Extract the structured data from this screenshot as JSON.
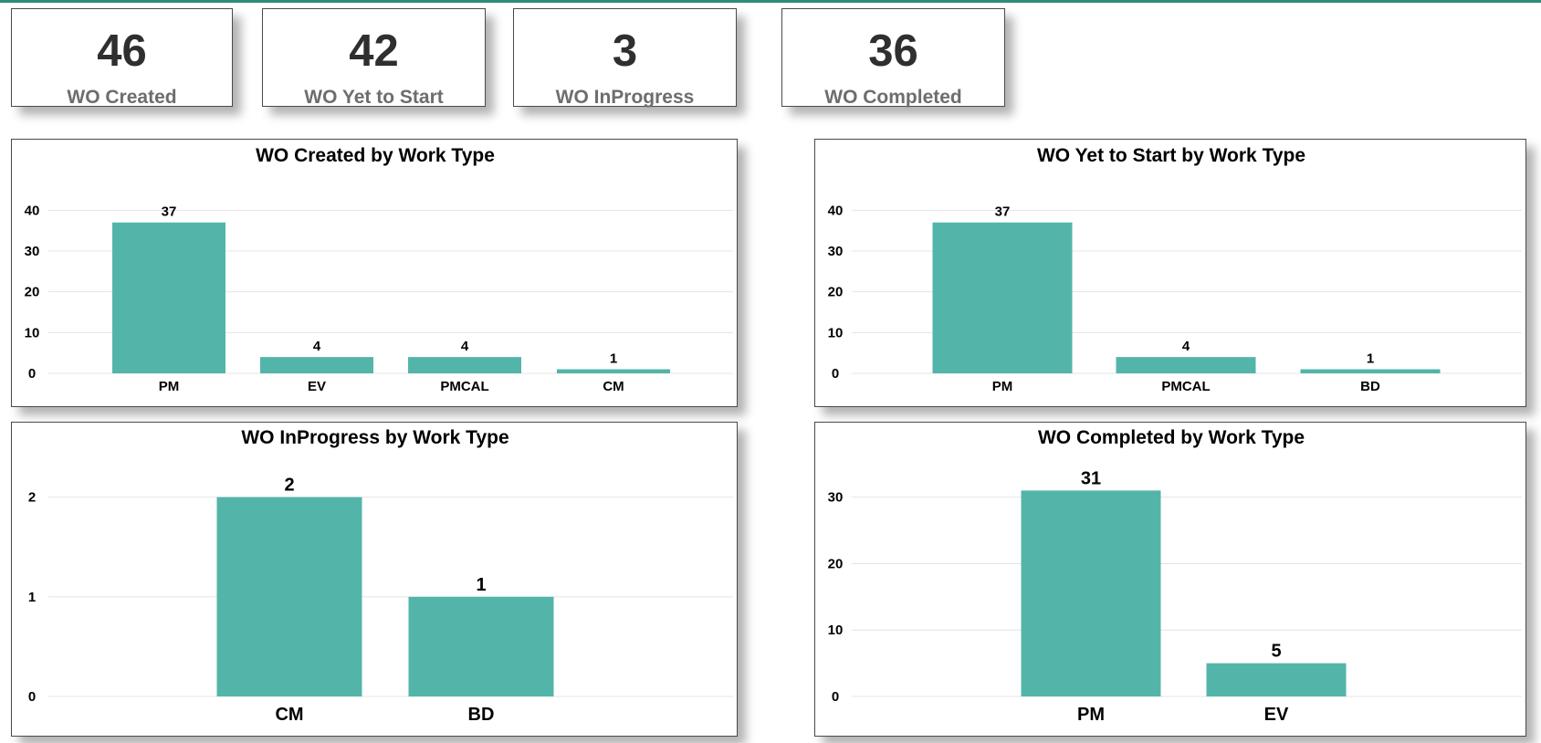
{
  "colors": {
    "accent": "#2e8b7a",
    "bar": "#53b5a9"
  },
  "kpis": [
    {
      "value": "46",
      "label": "WO Created"
    },
    {
      "value": "42",
      "label": "WO Yet to Start"
    },
    {
      "value": "3",
      "label": "WO InProgress"
    },
    {
      "value": "36",
      "label": "WO Completed"
    }
  ],
  "chart_data": [
    {
      "type": "bar",
      "title": "WO Created by Work Type",
      "categories": [
        "PM",
        "EV",
        "PMCAL",
        "CM"
      ],
      "values": [
        37,
        4,
        4,
        1
      ],
      "xlabel": "",
      "ylabel": "",
      "ylim": [
        0,
        45
      ],
      "yticks": [
        0,
        10,
        20,
        30,
        40
      ],
      "grid": true,
      "legend": "none"
    },
    {
      "type": "bar",
      "title": "WO Yet to Start by Work Type",
      "categories": [
        "PM",
        "PMCAL",
        "BD"
      ],
      "values": [
        37,
        4,
        1
      ],
      "xlabel": "",
      "ylabel": "",
      "ylim": [
        0,
        45
      ],
      "yticks": [
        0,
        10,
        20,
        30,
        40
      ],
      "grid": true,
      "legend": "none"
    },
    {
      "type": "bar",
      "title": "WO InProgress by Work Type",
      "categories": [
        "CM",
        "BD"
      ],
      "values": [
        2,
        1
      ],
      "xlabel": "",
      "ylabel": "",
      "ylim": [
        0,
        2.4
      ],
      "yticks": [
        0,
        1,
        2
      ],
      "grid": true,
      "legend": "none"
    },
    {
      "type": "bar",
      "title": "WO Completed by Work Type",
      "categories": [
        "PM",
        "EV"
      ],
      "values": [
        31,
        5
      ],
      "xlabel": "",
      "ylabel": "",
      "ylim": [
        0,
        36
      ],
      "yticks": [
        0,
        10,
        20,
        30
      ],
      "grid": true,
      "legend": "none"
    }
  ]
}
